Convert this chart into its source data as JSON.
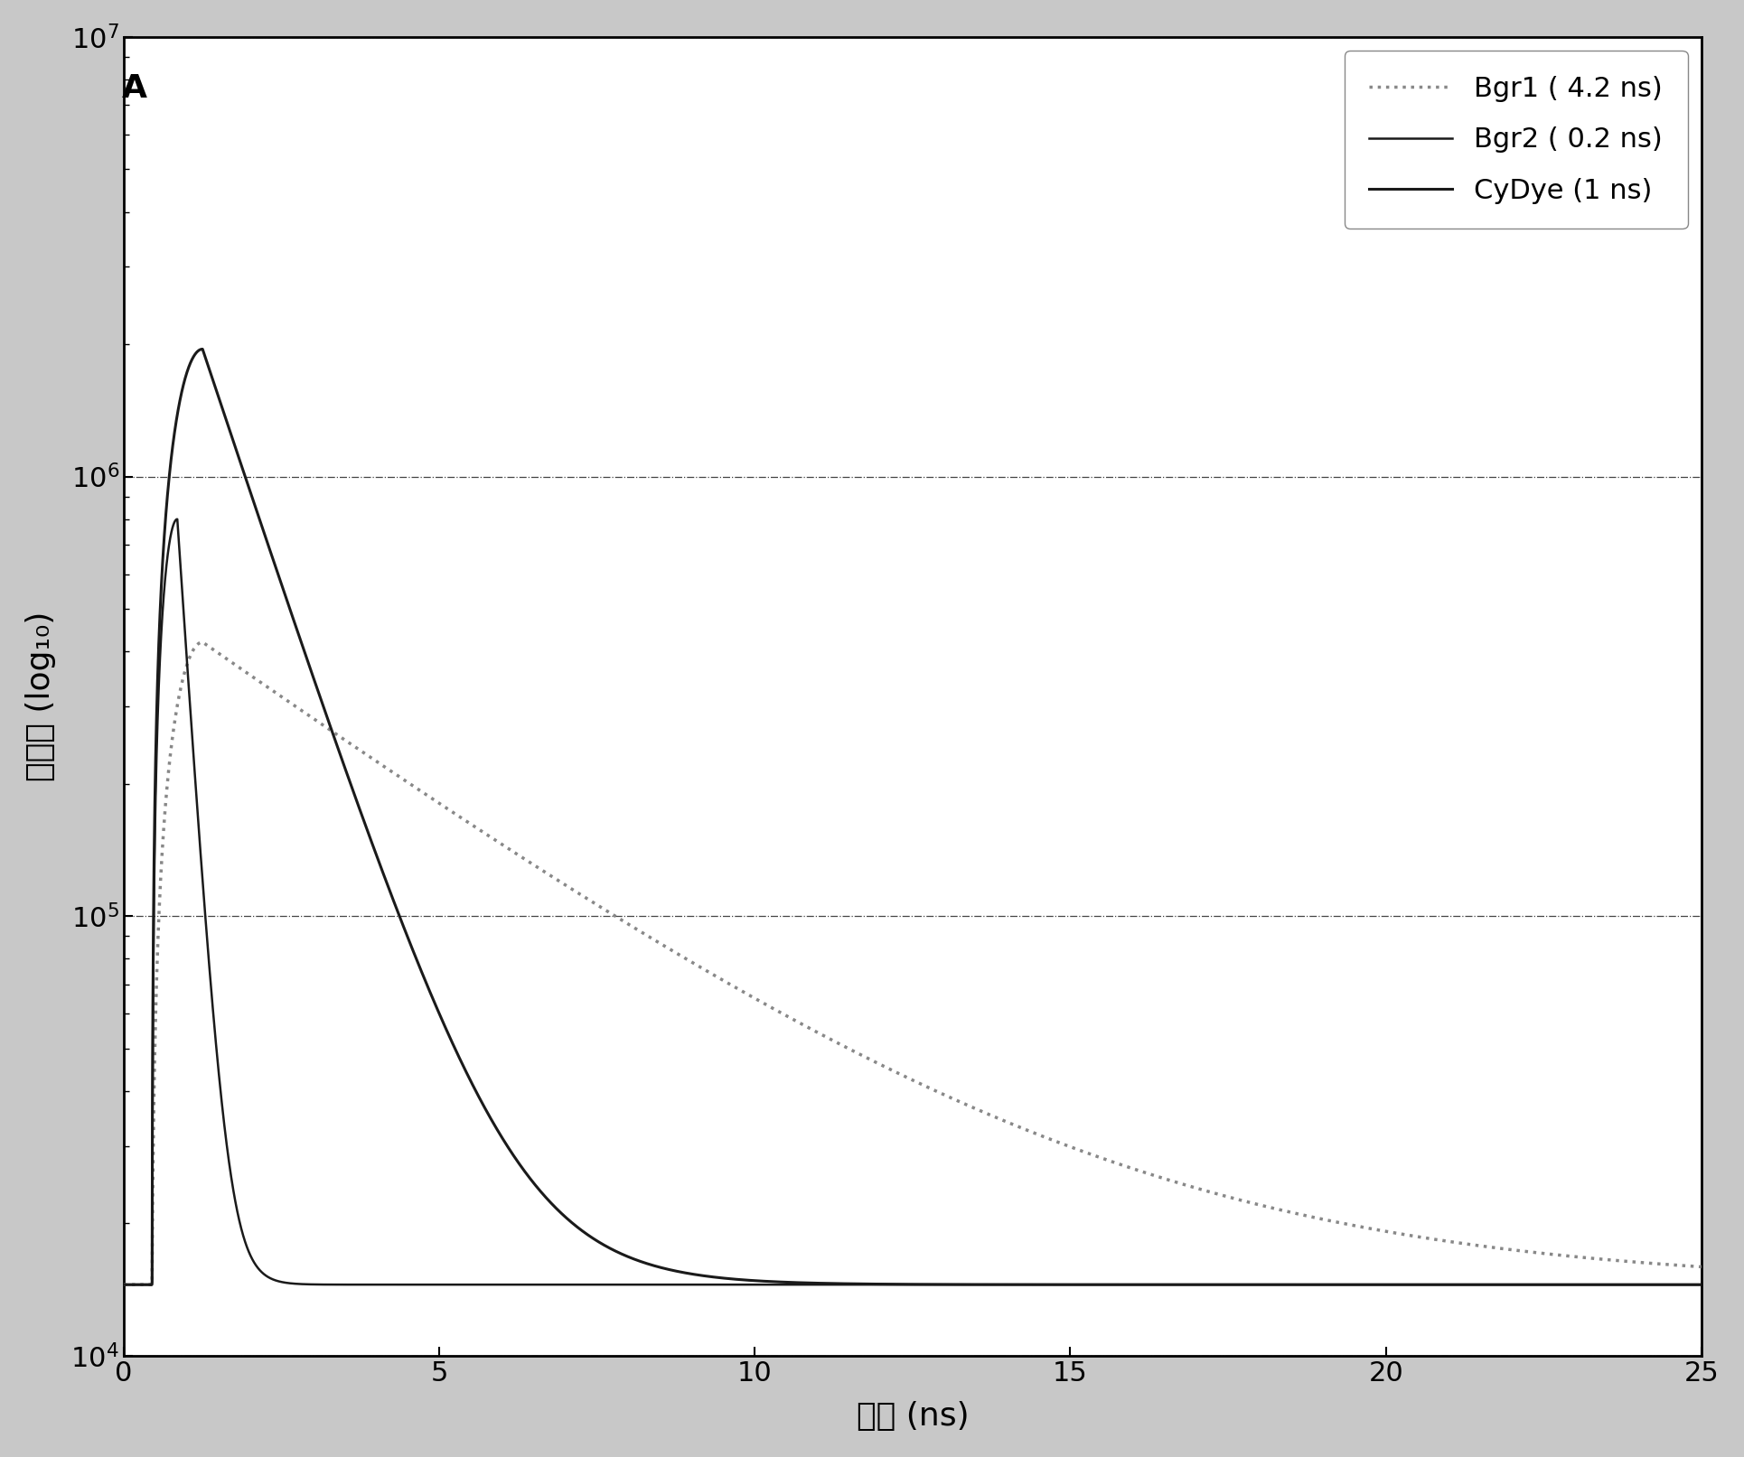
{
  "title": "A",
  "xlabel": "时间 (ns)",
  "ylabel": "光子数 (log₁₀)",
  "xlim": [
    0,
    25
  ],
  "ylim_log": [
    4,
    7
  ],
  "xticks": [
    0,
    5,
    10,
    15,
    20,
    25
  ],
  "ytick_exponents": [
    4,
    5,
    6,
    7
  ],
  "legend": [
    {
      "label": "CyDye (1 ns)",
      "color": "#1a1a1a",
      "lw": 2.2,
      "ls": "-",
      "zorder": 5
    },
    {
      "label": "Bgr1 ( 4.2 ns)",
      "color": "#888888",
      "lw": 2.5,
      "ls": ":",
      "zorder": 3
    },
    {
      "label": "Bgr2 ( 0.2 ns)",
      "color": "#1a1a1a",
      "lw": 1.8,
      "ls": "-",
      "zorder": 4
    }
  ],
  "outer_bg": "#c8c8c8",
  "plot_bg": "#ffffff",
  "border_color": "#000000",
  "grid_color": "#444444",
  "grid_ls": "-.",
  "grid_lw": 0.9,
  "cydye_peak": 1950000,
  "cydye_peak_t": 1.25,
  "cydye_tau": 1.0,
  "bgr1_peak": 420000,
  "bgr1_peak_t": 1.25,
  "bgr1_tau": 4.2,
  "bgr2_peak": 800000,
  "bgr2_peak_t": 0.85,
  "bgr2_tau": 0.2,
  "baseline": 14500,
  "rise_start": 0.45,
  "font_size_label": 26,
  "font_size_tick": 22,
  "font_size_legend": 22,
  "font_size_title": 26
}
